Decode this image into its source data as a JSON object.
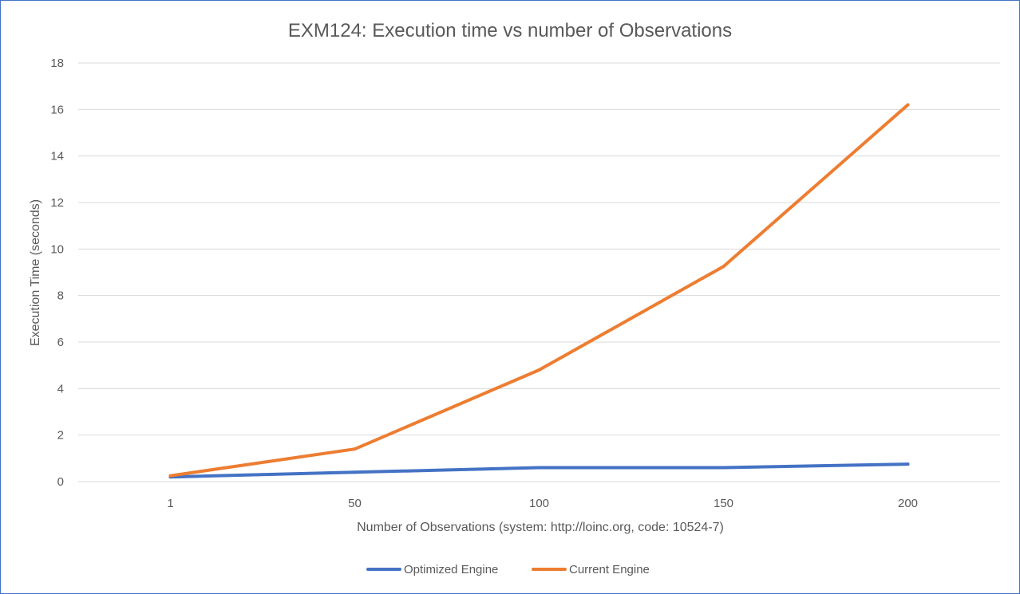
{
  "chart_data": {
    "type": "line",
    "title": "EXM124: Execution time vs number of Observations",
    "xlabel": "Number of Observations (system: http://loinc.org, code: 10524-7)",
    "ylabel": "Execution Time (seconds)",
    "categories": [
      "1",
      "50",
      "100",
      "150",
      "200"
    ],
    "ylim": [
      0,
      18
    ],
    "yticks": [
      "0",
      "2",
      "4",
      "6",
      "8",
      "10",
      "12",
      "14",
      "16",
      "18"
    ],
    "grid": true,
    "legend_position": "bottom",
    "series": [
      {
        "name": "Optimized Engine",
        "color": "#4472c4",
        "values": [
          0.2,
          0.4,
          0.6,
          0.6,
          0.75
        ]
      },
      {
        "name": "Current Engine",
        "color": "#ed7d31",
        "values": [
          0.25,
          1.4,
          4.8,
          9.25,
          16.2
        ]
      }
    ]
  }
}
